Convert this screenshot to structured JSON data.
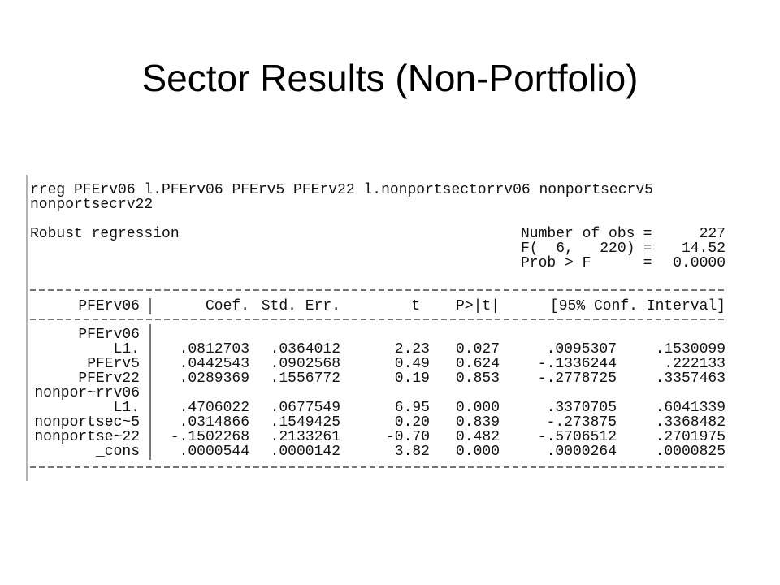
{
  "title": "Sector Results (Non-Portfolio)",
  "command": [
    "rreg PFErv06 l.PFErv06 PFErv5 PFErv22 l.nonportsectorrv06 nonportsecrv5",
    "nonportsecrv22"
  ],
  "model": "Robust regression",
  "stats": [
    [
      "Number of obs",
      "=",
      "227"
    ],
    [
      "F(  6,   220)",
      "=",
      "14.52"
    ],
    [
      "Prob > F",
      "=",
      "0.0000"
    ]
  ],
  "table": {
    "header": [
      "PFErv06",
      "Coef.",
      "Std. Err.",
      "t",
      "P>|t|",
      "[95% Conf. Interval]"
    ],
    "rows": [
      {
        "label": "PFErv06"
      },
      {
        "label": "L1.",
        "cells": [
          ".0812703",
          ".0364012",
          "2.23",
          "0.027",
          ".0095307",
          ".1530099"
        ]
      },
      {
        "label": "PFErv5",
        "cells": [
          ".0442543",
          ".0902568",
          "0.49",
          "0.624",
          "-.1336244",
          ".222133"
        ]
      },
      {
        "label": "PFErv22",
        "cells": [
          ".0289369",
          ".1556772",
          "0.19",
          "0.853",
          "-.2778725",
          ".3357463"
        ]
      },
      {
        "label": "nonpor~rrv06"
      },
      {
        "label": "L1.",
        "cells": [
          ".4706022",
          ".0677549",
          "6.95",
          "0.000",
          ".3370705",
          ".6041339"
        ]
      },
      {
        "label": "nonportsec~5",
        "cells": [
          ".0314866",
          ".1549425",
          "0.20",
          "0.839",
          "-.273875",
          ".3368482"
        ]
      },
      {
        "label": "nonportse~22",
        "cells": [
          "-.1502268",
          ".2133261",
          "-0.70",
          "0.482",
          "-.5706512",
          ".2701975"
        ]
      },
      {
        "label": "_cons",
        "cells": [
          ".0000544",
          ".0000142",
          "3.82",
          "0.000",
          ".0000264",
          ".0000825"
        ]
      }
    ]
  }
}
